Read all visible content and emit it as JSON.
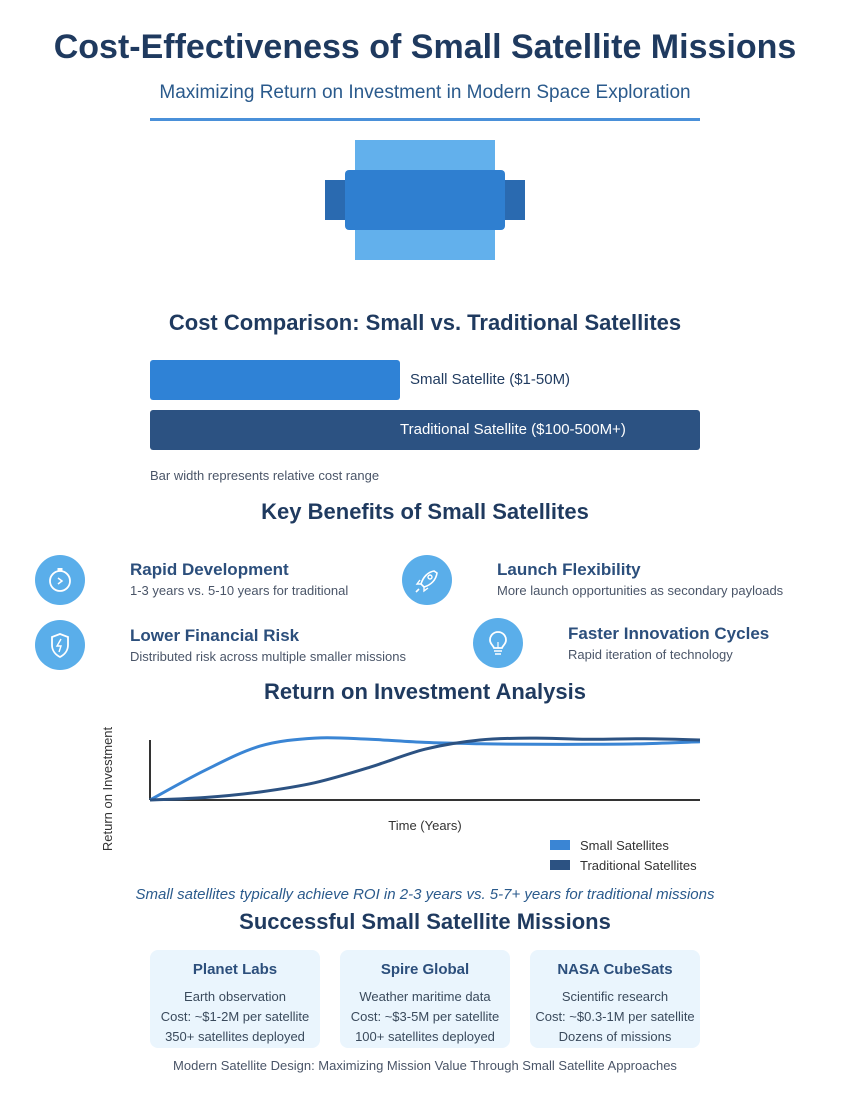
{
  "header": {
    "title": "Cost-Effectiveness of Small Satellite Missions",
    "subtitle": "Maximizing Return on Investment in Modern Space Exploration"
  },
  "cost_comparison": {
    "heading": "Cost Comparison: Small vs. Traditional Satellites",
    "small_label": "Small Satellite ($1-50M)",
    "traditional_label": "Traditional Satellite ($100-500M+)",
    "note": "Bar width represents relative cost range",
    "small_relative_width": 0.4545,
    "traditional_relative_width": 1.0
  },
  "benefits": {
    "heading": "Key Benefits of Small Satellites",
    "items": [
      {
        "title": "Rapid Development",
        "desc": "1-3 years vs. 5-10 years for traditional",
        "icon": "stopwatch-icon"
      },
      {
        "title": "Launch Flexibility",
        "desc": "More launch opportunities as secondary payloads",
        "icon": "rocket-icon"
      },
      {
        "title": "Lower Financial Risk",
        "desc": "Distributed risk across multiple smaller missions",
        "icon": "shield-icon"
      },
      {
        "title": "Faster Innovation Cycles",
        "desc": "Rapid iteration of technology",
        "icon": "lightbulb-icon"
      }
    ]
  },
  "chart_data": {
    "type": "line",
    "title": "Return on Investment Analysis",
    "xlabel": "Time (Years)",
    "ylabel": "Return on Investment",
    "legend_position": "bottom-right",
    "x": [
      0,
      1,
      2,
      3,
      4,
      5,
      6,
      7,
      8,
      9,
      10
    ],
    "series": [
      {
        "name": "Small Satellites",
        "color": "#3a85d4",
        "values": [
          0,
          0.48,
          0.87,
          1.0,
          0.98,
          0.93,
          0.91,
          0.9,
          0.9,
          0.91,
          0.94
        ]
      },
      {
        "name": "Traditional Satellites",
        "color": "#2c5282",
        "values": [
          0,
          0.04,
          0.13,
          0.28,
          0.53,
          0.82,
          0.97,
          1.0,
          0.98,
          0.99,
          0.97
        ]
      }
    ],
    "ylim": [
      0,
      1.05
    ],
    "axis_tick_labels": false
  },
  "roi_note": "Small satellites typically achieve ROI in 2-3 years vs. 5-7+ years for traditional missions",
  "missions": {
    "heading": "Successful Small Satellite Missions",
    "cards": [
      {
        "name": "Planet Labs",
        "purpose": "Earth observation",
        "cost": "Cost: ~$1-2M per satellite",
        "count": "350+ satellites deployed"
      },
      {
        "name": "Spire Global",
        "purpose": "Weather maritime data",
        "cost": "Cost: ~$3-5M per satellite",
        "count": "100+ satellites deployed"
      },
      {
        "name": "NASA CubeSats",
        "purpose": "Scientific research",
        "cost": "Cost: ~$0.3-1M per satellite",
        "count": "Dozens of missions"
      }
    ]
  },
  "footer": "Modern Satellite Design: Maximizing Mission Value Through Small Satellite Approaches",
  "colors": {
    "primary_dark": "#1f3a5f",
    "accent_blue": "#2f82d6",
    "navy": "#2c5282",
    "light_blue": "#62b0ec",
    "card_bg": "#eaf5fd"
  }
}
